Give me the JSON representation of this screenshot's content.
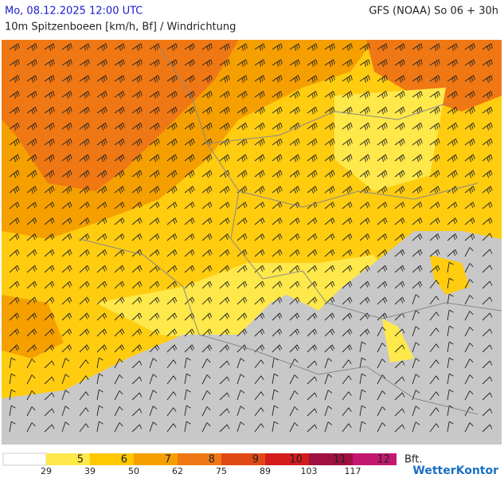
{
  "header": {
    "title": "Mo, 08.12.2025 12:00 UTC",
    "model": "GFS (NOAA) So 06 + 30h",
    "subtitle": "10m Spitzenboeen [km/h, Bf] / Windrichtung"
  },
  "legend": {
    "classes": [
      {
        "label": "5",
        "color": "#ffe84a"
      },
      {
        "label": "6",
        "color": "#ffc800"
      },
      {
        "label": "7",
        "color": "#f5a000"
      },
      {
        "label": "8",
        "color": "#f07814"
      },
      {
        "label": "9",
        "color": "#e04a14"
      },
      {
        "label": "10",
        "color": "#d41c1c"
      },
      {
        "label": "11",
        "color": "#a01040"
      },
      {
        "label": "12",
        "color": "#c41870"
      }
    ],
    "thresholds": [
      29,
      39,
      50,
      62,
      75,
      89,
      103,
      117
    ],
    "unit": "Bft.",
    "brand": "WetterKontor"
  }
}
